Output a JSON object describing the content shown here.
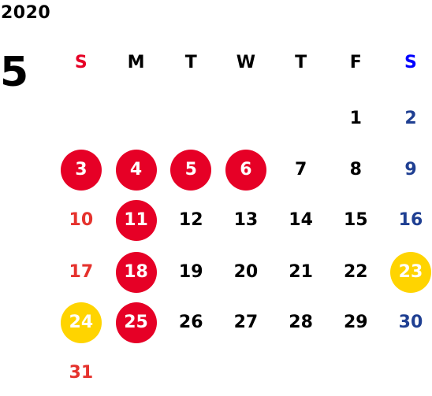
{
  "calendar": {
    "year": "2020",
    "month": "5",
    "colors": {
      "holiday_circle": "#e60026",
      "weekend_circle": "#ffd400",
      "sunday_text": "#e5322d",
      "saturday_text": "#1f3f92",
      "sunday_header": "#e60026",
      "saturday_header": "#0000ff",
      "normal_text": "#000000"
    },
    "weekdays": [
      {
        "label": "S",
        "color": "#e60026"
      },
      {
        "label": "M",
        "color": "#000000"
      },
      {
        "label": "T",
        "color": "#000000"
      },
      {
        "label": "W",
        "color": "#000000"
      },
      {
        "label": "T",
        "color": "#000000"
      },
      {
        "label": "F",
        "color": "#000000"
      },
      {
        "label": "S",
        "color": "#0000ff"
      }
    ],
    "weeks": [
      [
        {
          "day": "",
          "style": "empty"
        },
        {
          "day": "",
          "style": "empty"
        },
        {
          "day": "",
          "style": "empty"
        },
        {
          "day": "",
          "style": "empty"
        },
        {
          "day": "",
          "style": "empty"
        },
        {
          "day": "1",
          "style": "normal-text"
        },
        {
          "day": "2",
          "style": "sat-text"
        }
      ],
      [
        {
          "day": "3",
          "style": "red-dot"
        },
        {
          "day": "4",
          "style": "red-dot"
        },
        {
          "day": "5",
          "style": "red-dot"
        },
        {
          "day": "6",
          "style": "red-dot"
        },
        {
          "day": "7",
          "style": "normal-text"
        },
        {
          "day": "8",
          "style": "normal-text"
        },
        {
          "day": "9",
          "style": "sat-text"
        }
      ],
      [
        {
          "day": "10",
          "style": "sun-text"
        },
        {
          "day": "11",
          "style": "red-dot"
        },
        {
          "day": "12",
          "style": "normal-text"
        },
        {
          "day": "13",
          "style": "normal-text"
        },
        {
          "day": "14",
          "style": "normal-text"
        },
        {
          "day": "15",
          "style": "normal-text"
        },
        {
          "day": "16",
          "style": "sat-text"
        }
      ],
      [
        {
          "day": "17",
          "style": "sun-text"
        },
        {
          "day": "18",
          "style": "red-dot"
        },
        {
          "day": "19",
          "style": "normal-text"
        },
        {
          "day": "20",
          "style": "normal-text"
        },
        {
          "day": "21",
          "style": "normal-text"
        },
        {
          "day": "22",
          "style": "normal-text"
        },
        {
          "day": "23",
          "style": "yellow-dot"
        }
      ],
      [
        {
          "day": "24",
          "style": "yellow-dot"
        },
        {
          "day": "25",
          "style": "red-dot"
        },
        {
          "day": "26",
          "style": "normal-text"
        },
        {
          "day": "27",
          "style": "normal-text"
        },
        {
          "day": "28",
          "style": "normal-text"
        },
        {
          "day": "29",
          "style": "normal-text"
        },
        {
          "day": "30",
          "style": "sat-text"
        }
      ],
      [
        {
          "day": "31",
          "style": "sun-text"
        },
        {
          "day": "",
          "style": "empty"
        },
        {
          "day": "",
          "style": "empty"
        },
        {
          "day": "",
          "style": "empty"
        },
        {
          "day": "",
          "style": "empty"
        },
        {
          "day": "",
          "style": "empty"
        },
        {
          "day": "",
          "style": "empty"
        }
      ]
    ]
  }
}
